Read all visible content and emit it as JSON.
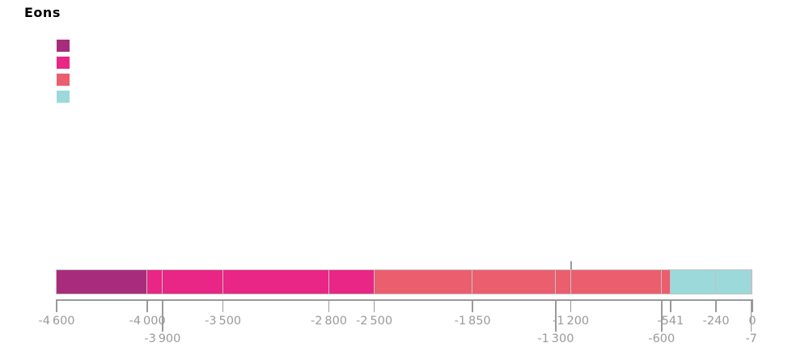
{
  "title": "Eons",
  "colors": {
    "hadean": "#A82C7C",
    "archean": "#E92585",
    "proterozoic": "#EA5E6E",
    "phanerozoic": "#9BD9DA",
    "axis": "#9A9A9A",
    "segment_border": "#C3C3C3",
    "title_color": "#000000"
  },
  "legend": {
    "items": [
      {
        "icon": "hadean-color-swatch-icon",
        "color_key": "hadean"
      },
      {
        "icon": "archean-color-swatch-icon",
        "color_key": "archean"
      },
      {
        "icon": "proterozoic-color-swatch-icon",
        "color_key": "proterozoic"
      },
      {
        "icon": "phanerozoic-color-swatch-icon",
        "color_key": "phanerozoic"
      }
    ],
    "labels_visible": false
  },
  "chart_data": {
    "type": "bar",
    "subtype": "horizontal-stacked-timeline",
    "title": "Eons",
    "xlim": [
      -4600,
      0
    ],
    "grid": false,
    "legend_position": "top-left",
    "segments": [
      {
        "from": -4600,
        "to": -4000,
        "color_key": "hadean"
      },
      {
        "from": -4000,
        "to": -3900,
        "color_key": "archean"
      },
      {
        "from": -3900,
        "to": -3500,
        "color_key": "archean"
      },
      {
        "from": -3500,
        "to": -2800,
        "color_key": "archean"
      },
      {
        "from": -2800,
        "to": -2500,
        "color_key": "archean"
      },
      {
        "from": -2500,
        "to": -1850,
        "color_key": "proterozoic"
      },
      {
        "from": -1850,
        "to": -1300,
        "color_key": "proterozoic"
      },
      {
        "from": -1300,
        "to": -1200,
        "color_key": "proterozoic"
      },
      {
        "from": -1200,
        "to": -600,
        "color_key": "proterozoic"
      },
      {
        "from": -600,
        "to": -541,
        "color_key": "proterozoic"
      },
      {
        "from": -541,
        "to": -240,
        "color_key": "phanerozoic"
      },
      {
        "from": -240,
        "to": -7,
        "color_key": "phanerozoic"
      },
      {
        "from": -7,
        "to": 0,
        "color_key": "phanerozoic"
      }
    ],
    "ticks": [
      {
        "value": -4600,
        "label": "-4 600",
        "row": 1
      },
      {
        "value": -4000,
        "label": "-4 000",
        "row": 1
      },
      {
        "value": -3900,
        "label": "-3 900",
        "row": 2
      },
      {
        "value": -3500,
        "label": "-3 500",
        "row": 1
      },
      {
        "value": -2800,
        "label": "-2 800",
        "row": 1
      },
      {
        "value": -2500,
        "label": "-2 500",
        "row": 1
      },
      {
        "value": -1850,
        "label": "-1 850",
        "row": 1
      },
      {
        "value": -1300,
        "label": "-1 300",
        "row": 2
      },
      {
        "value": -1200,
        "label": "-1 200",
        "row": 1
      },
      {
        "value": -600,
        "label": "-600",
        "row": 2
      },
      {
        "value": -541,
        "label": "-541",
        "row": 1
      },
      {
        "value": -240,
        "label": "-240",
        "row": 1
      },
      {
        "value": -7,
        "label": "-7",
        "row": 2
      },
      {
        "value": 0,
        "label": "0",
        "row": 1
      }
    ],
    "marker_above_bar": {
      "value": -1200
    }
  }
}
